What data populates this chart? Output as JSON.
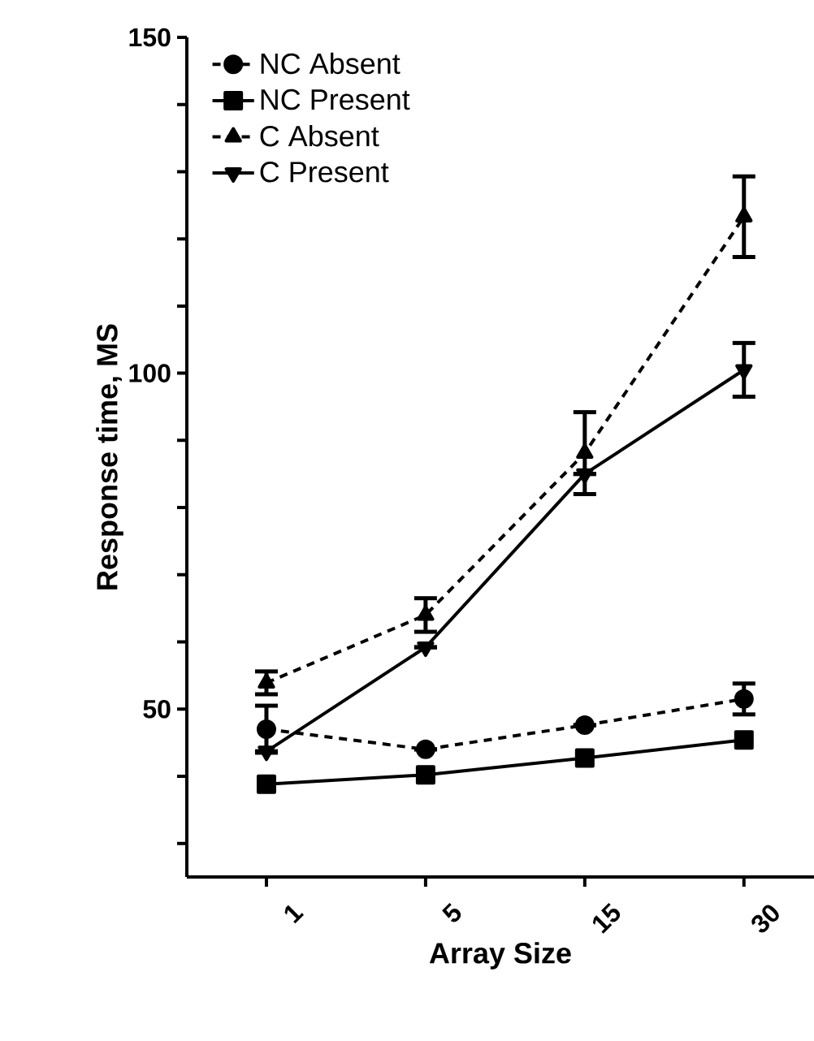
{
  "chart_data": {
    "type": "line",
    "xlabel": "Array Size",
    "ylabel": "Response time, MS",
    "categories": [
      "1",
      "5",
      "15",
      "30"
    ],
    "ylim": [
      25,
      150
    ],
    "yticks": [
      {
        "value": 30,
        "label": null
      },
      {
        "value": 40,
        "label": null
      },
      50,
      {
        "value": 60,
        "label": null
      },
      {
        "value": 70,
        "label": null
      },
      {
        "value": 80,
        "label": null
      },
      {
        "value": 90,
        "label": null
      },
      100,
      {
        "value": 110,
        "label": null
      },
      {
        "value": 120,
        "label": null
      },
      {
        "value": 130,
        "label": null
      },
      {
        "value": 140,
        "label": null
      },
      150
    ],
    "legend": "top left",
    "grid": false,
    "series": [
      {
        "name": "NC Absent",
        "color": "#000000",
        "marker": "circle",
        "line_style": "dashed",
        "values": [
          47,
          44,
          47.6,
          51.5
        ],
        "errors": [
          3.5,
          null,
          null,
          2.3
        ]
      },
      {
        "name": "NC Present",
        "color": "#000000",
        "marker": "square",
        "line_style": "solid",
        "values": [
          38.8,
          40.2,
          42.7,
          45.4
        ]
      },
      {
        "name": "C Absent",
        "color": "#000000",
        "marker": "triangle",
        "line_style": "dashed",
        "values": [
          53.9,
          64,
          88.1,
          123.3
        ],
        "errors": [
          1.7,
          2.5,
          6.1,
          6
        ]
      },
      {
        "name": "C Present",
        "color": "#000000",
        "marker": "triangle-down",
        "line_style": "solid",
        "values": [
          43.7,
          59.2,
          85,
          100.5
        ],
        "errors": [
          null,
          null,
          null,
          4
        ]
      }
    ]
  }
}
